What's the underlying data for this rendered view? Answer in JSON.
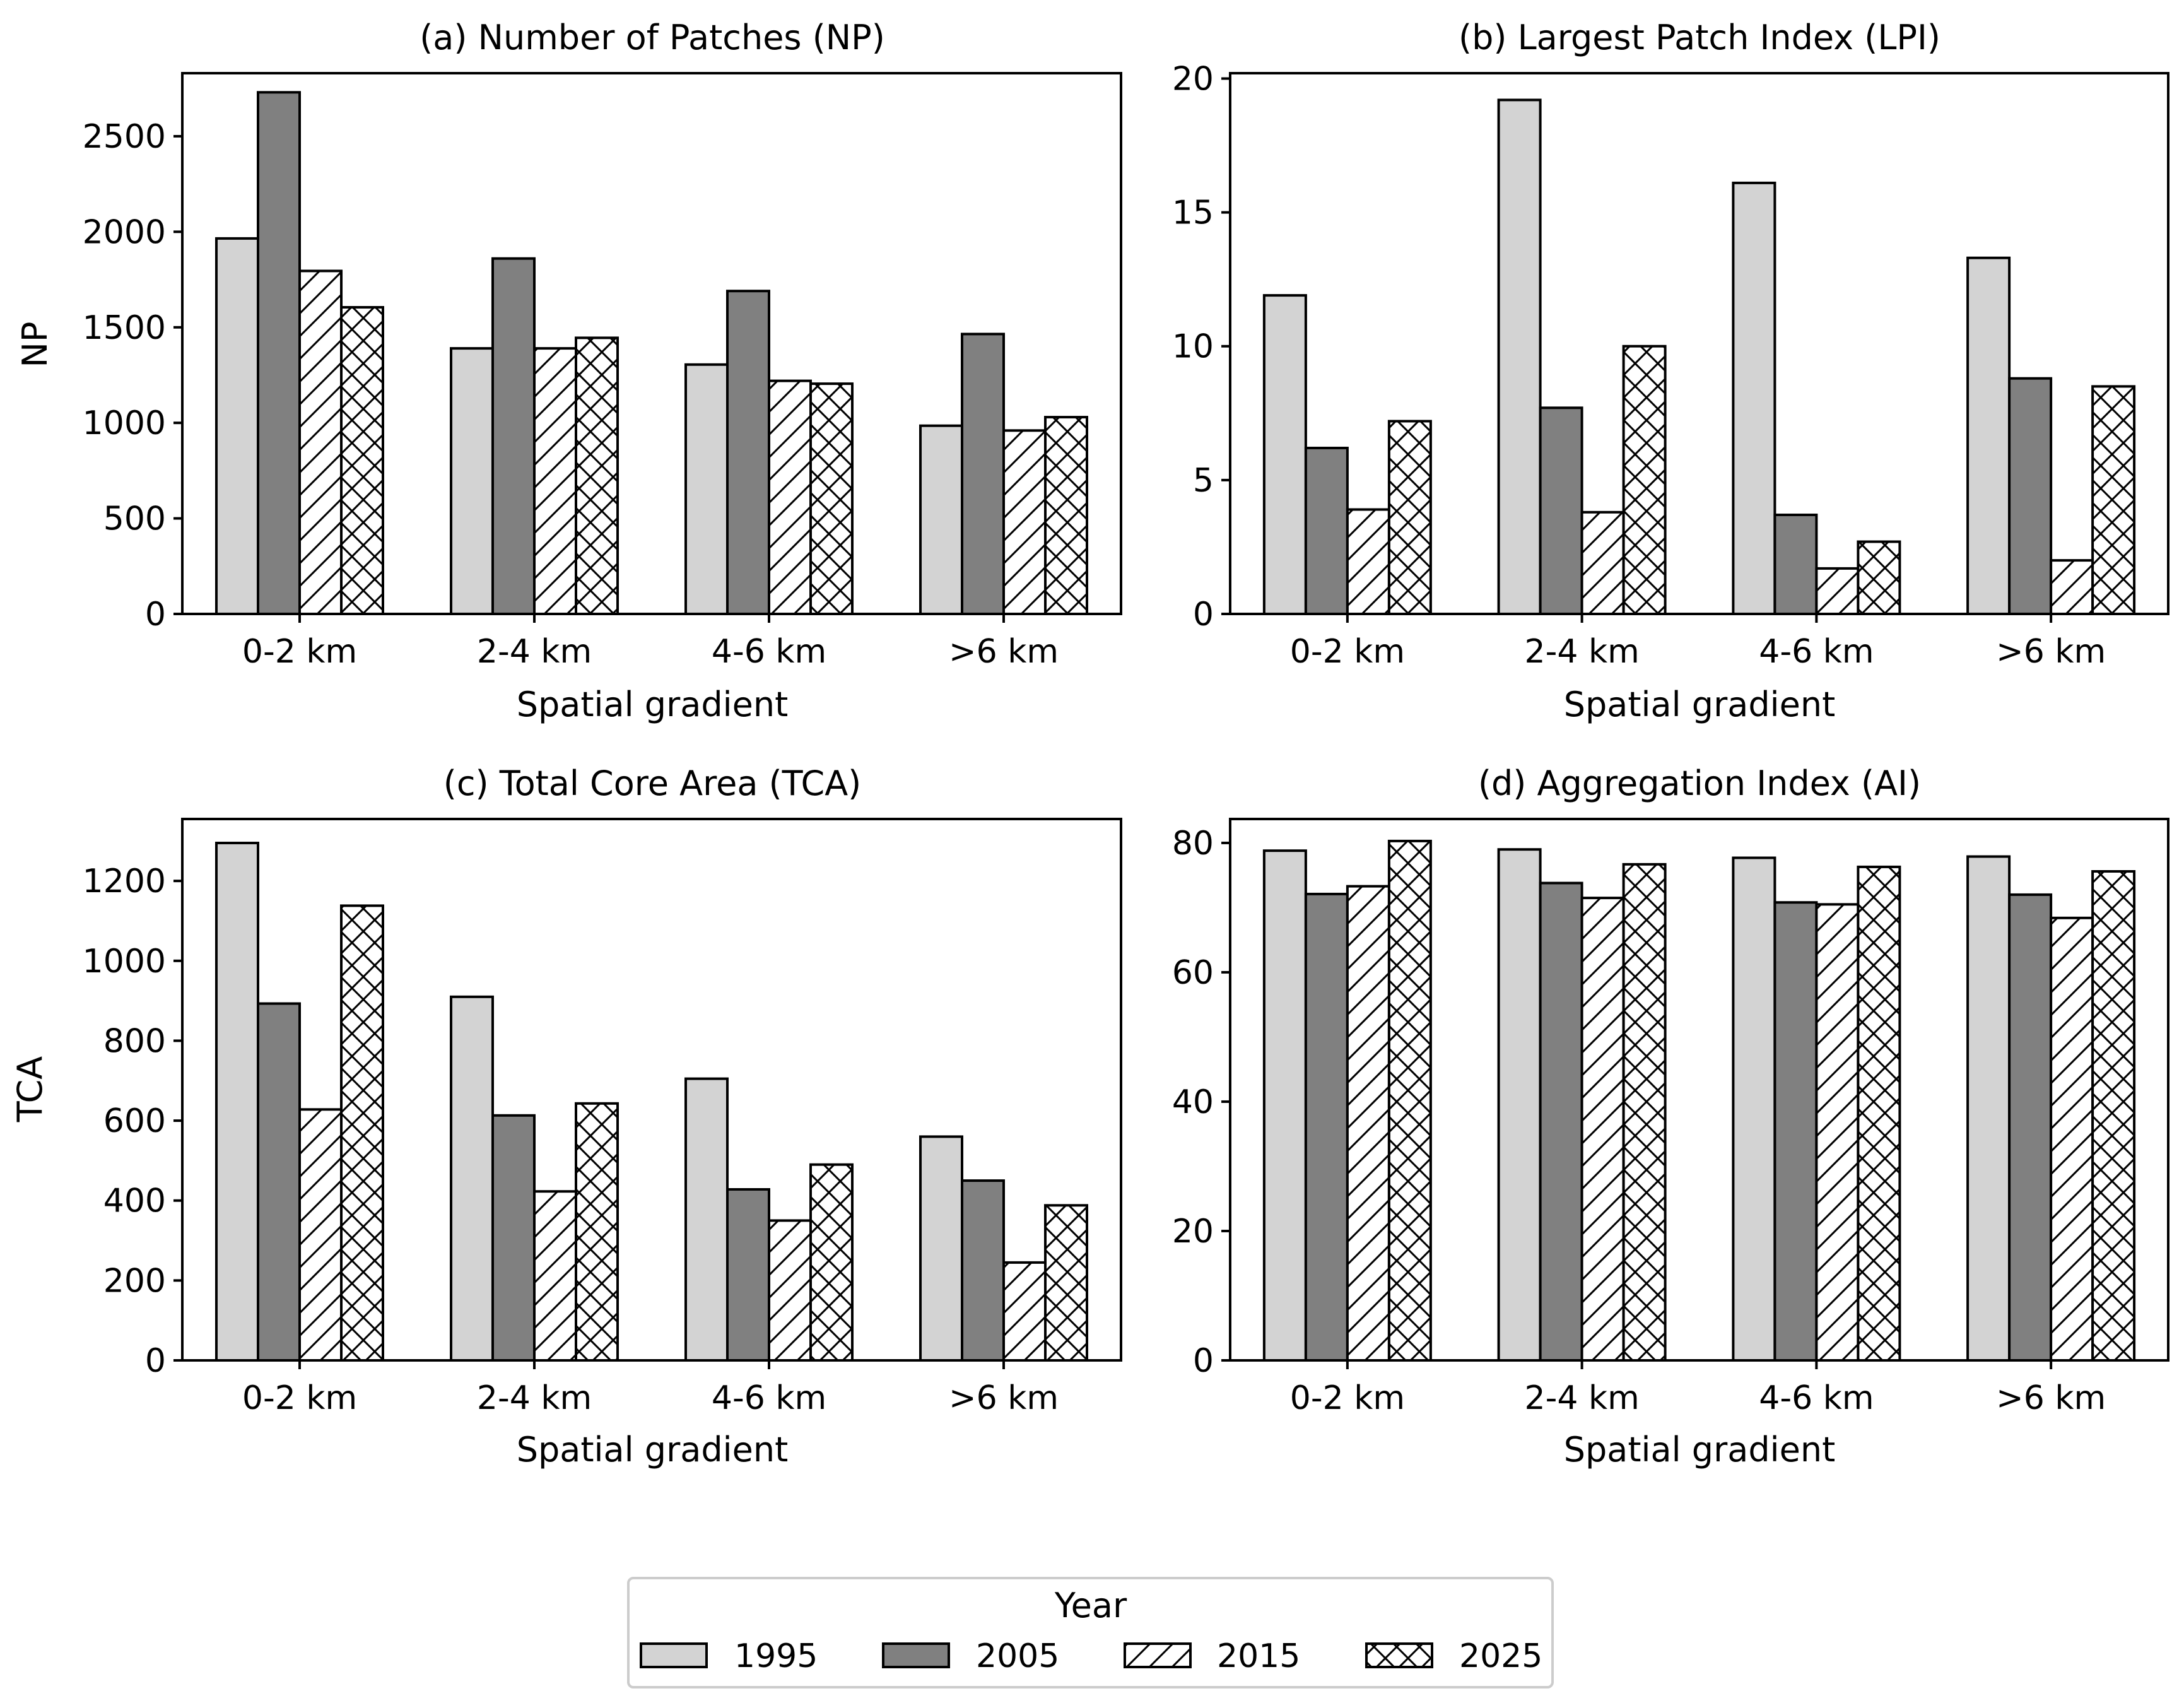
{
  "figure": {
    "legend": {
      "title": "Year",
      "placement": "bottom-center"
    }
  },
  "series_styles": [
    {
      "name": "1995",
      "fill": "#d3d3d3",
      "pattern": "none"
    },
    {
      "name": "2005",
      "fill": "#808080",
      "pattern": "none"
    },
    {
      "name": "2015",
      "fill": "#ffffff",
      "pattern": "diagonal-hatch"
    },
    {
      "name": "2025",
      "fill": "#ffffff",
      "pattern": "cross-hatch"
    }
  ],
  "chart_data": [
    {
      "type": "bar",
      "title": "(a) Number of Patches (NP)",
      "xlabel": "Spatial gradient",
      "ylabel": "NP",
      "categories": [
        "0-2 km",
        "2-4 km",
        "4-6 km",
        ">6 km"
      ],
      "ylim": [
        0,
        2830
      ],
      "yticks": [
        0,
        500,
        1000,
        1500,
        2000,
        2500
      ],
      "grid": false,
      "series": [
        {
          "name": "1995",
          "values": [
            1965,
            1390,
            1305,
            985
          ]
        },
        {
          "name": "2005",
          "values": [
            2730,
            1860,
            1690,
            1465
          ]
        },
        {
          "name": "2015",
          "values": [
            1795,
            1390,
            1220,
            960
          ]
        },
        {
          "name": "2025",
          "values": [
            1605,
            1445,
            1205,
            1030
          ]
        }
      ]
    },
    {
      "type": "bar",
      "title": "(b) Largest Patch Index (LPI)",
      "xlabel": "Spatial gradient",
      "ylabel": "",
      "categories": [
        "0-2 km",
        "2-4 km",
        "4-6 km",
        ">6 km"
      ],
      "ylim": [
        0,
        20.2
      ],
      "yticks": [
        0,
        5,
        10,
        15,
        20
      ],
      "grid": false,
      "series": [
        {
          "name": "1995",
          "values": [
            11.9,
            19.2,
            16.1,
            13.3
          ]
        },
        {
          "name": "2005",
          "values": [
            6.2,
            7.7,
            3.7,
            8.8
          ]
        },
        {
          "name": "2015",
          "values": [
            3.9,
            3.8,
            1.7,
            2.0
          ]
        },
        {
          "name": "2025",
          "values": [
            7.2,
            10.0,
            2.7,
            8.5
          ]
        }
      ]
    },
    {
      "type": "bar",
      "title": "(c) Total Core Area (TCA)",
      "xlabel": "Spatial gradient",
      "ylabel": "TCA",
      "categories": [
        "0-2 km",
        "2-4 km",
        "4-6 km",
        ">6 km"
      ],
      "ylim": [
        0,
        1355
      ],
      "yticks": [
        0,
        200,
        400,
        600,
        800,
        1000,
        1200
      ],
      "grid": false,
      "series": [
        {
          "name": "1995",
          "values": [
            1295,
            910,
            705,
            560
          ]
        },
        {
          "name": "2005",
          "values": [
            893,
            613,
            428,
            450
          ]
        },
        {
          "name": "2015",
          "values": [
            628,
            423,
            350,
            245
          ]
        },
        {
          "name": "2025",
          "values": [
            1138,
            643,
            490,
            388
          ]
        }
      ]
    },
    {
      "type": "bar",
      "title": "(d) Aggregation Index (AI)",
      "xlabel": "Spatial gradient",
      "ylabel": "",
      "categories": [
        "0-2 km",
        "2-4 km",
        "4-6 km",
        ">6 km"
      ],
      "ylim": [
        0,
        83.7
      ],
      "yticks": [
        0,
        20,
        40,
        60,
        80
      ],
      "grid": false,
      "series": [
        {
          "name": "1995",
          "values": [
            78.8,
            79.0,
            77.7,
            77.9
          ]
        },
        {
          "name": "2005",
          "values": [
            72.1,
            73.8,
            70.8,
            72.0
          ]
        },
        {
          "name": "2015",
          "values": [
            73.3,
            71.5,
            70.5,
            68.4
          ]
        },
        {
          "name": "2025",
          "values": [
            80.3,
            76.7,
            76.3,
            75.6
          ]
        }
      ]
    }
  ]
}
